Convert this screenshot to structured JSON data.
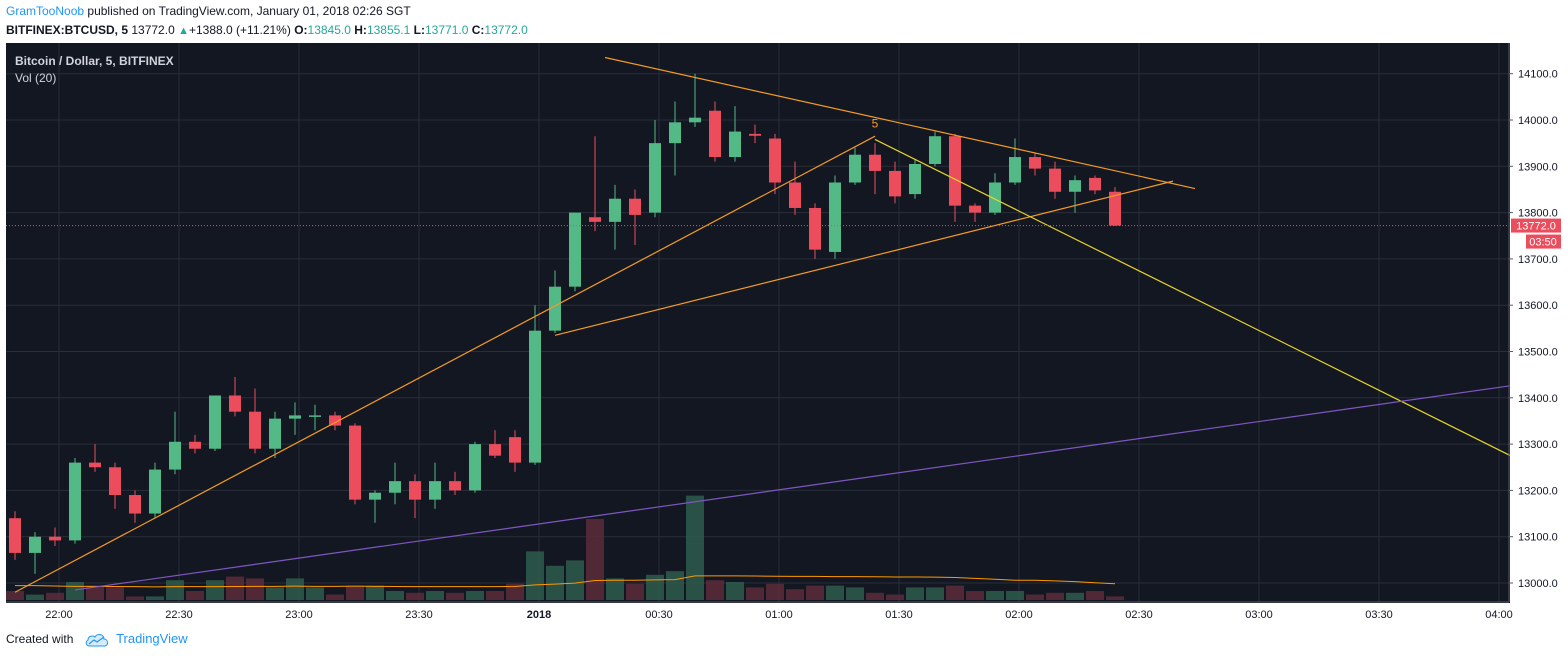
{
  "header": {
    "author": "GramTooNoob",
    "published_text": "published on TradingView.com, January 01, 2018 02:26 SGT",
    "symbol": "BITFINEX:BTCUSD, 5",
    "last_price": "13772.0",
    "change": "+1388.0 (+11.21%)",
    "o_label": "O:",
    "o_value": "13845.0",
    "h_label": "H:",
    "h_value": "13855.1",
    "l_label": "L:",
    "l_value": "13771.0",
    "c_label": "C:",
    "c_value": "13772.0"
  },
  "chart": {
    "title": "Bitcoin / Dollar, 5, BITFINEX",
    "volume_label": "Vol (20)",
    "price_tag": "13772.0",
    "countdown_tag": "03:50",
    "wave_label": "5"
  },
  "footer": {
    "created_with": "Created with",
    "brand": "TradingView"
  },
  "colors": {
    "background": "#131722",
    "grid": "#2a2e39",
    "up": "#53b987",
    "down": "#eb4d5c",
    "trendline_orange": "#f59b22",
    "trendline_yellow": "#e6d52a",
    "trendline_purple": "#7e57c2",
    "volume_ma": "#ff9800"
  },
  "chart_data": {
    "type": "candlestick",
    "interval_minutes": 5,
    "first_candle_time": "21:55",
    "y_ticks": [
      13000,
      13100,
      13200,
      13300,
      13400,
      13500,
      13600,
      13700,
      13800,
      13900,
      14000,
      14100
    ],
    "y_tick_labels": [
      "13000.0",
      "13100.0",
      "13200.0",
      "13300.0",
      "13400.0",
      "13500.0",
      "13600.0",
      "13700.0",
      "13800.0",
      "13900.0",
      "14000.0",
      "14100.0"
    ],
    "ylim": [
      12965,
      14142
    ],
    "x_ticks": [
      {
        "label": "22:00",
        "index": 1
      },
      {
        "label": "22:30",
        "index": 7
      },
      {
        "label": "23:00",
        "index": 13
      },
      {
        "label": "23:30",
        "index": 19
      },
      {
        "label": "2018",
        "index": 25
      },
      {
        "label": "00:30",
        "index": 31
      },
      {
        "label": "01:00",
        "index": 37
      },
      {
        "label": "01:30",
        "index": 43
      },
      {
        "label": "02:00",
        "index": 49
      },
      {
        "label": "02:30",
        "index": 55
      },
      {
        "label": "03:00",
        "index": 61
      },
      {
        "label": "03:30",
        "index": 67
      },
      {
        "label": "04:00",
        "index": 73
      }
    ],
    "current_price": 13772.0,
    "candles": [
      {
        "o": 13140,
        "h": 13155,
        "l": 13050,
        "c": 13065,
        "v": 0.5
      },
      {
        "o": 13065,
        "h": 13110,
        "l": 13020,
        "c": 13100,
        "v": 0.3
      },
      {
        "o": 13100,
        "h": 13120,
        "l": 13080,
        "c": 13092,
        "v": 0.4
      },
      {
        "o": 13092,
        "h": 13270,
        "l": 13085,
        "c": 13260,
        "v": 1.0
      },
      {
        "o": 13260,
        "h": 13300,
        "l": 13240,
        "c": 13250,
        "v": 0.8
      },
      {
        "o": 13250,
        "h": 13260,
        "l": 13160,
        "c": 13190,
        "v": 0.7
      },
      {
        "o": 13190,
        "h": 13200,
        "l": 13130,
        "c": 13150,
        "v": 0.2
      },
      {
        "o": 13150,
        "h": 13260,
        "l": 13140,
        "c": 13245,
        "v": 0.2
      },
      {
        "o": 13245,
        "h": 13370,
        "l": 13235,
        "c": 13305,
        "v": 1.1
      },
      {
        "o": 13305,
        "h": 13320,
        "l": 13280,
        "c": 13290,
        "v": 0.5
      },
      {
        "o": 13290,
        "h": 13405,
        "l": 13285,
        "c": 13405,
        "v": 1.1
      },
      {
        "o": 13405,
        "h": 13445,
        "l": 13360,
        "c": 13370,
        "v": 1.3
      },
      {
        "o": 13370,
        "h": 13420,
        "l": 13280,
        "c": 13290,
        "v": 1.2
      },
      {
        "o": 13290,
        "h": 13370,
        "l": 13270,
        "c": 13355,
        "v": 0.7
      },
      {
        "o": 13355,
        "h": 13390,
        "l": 13320,
        "c": 13362,
        "v": 1.2
      },
      {
        "o": 13362,
        "h": 13385,
        "l": 13330,
        "c": 13362,
        "v": 0.7
      },
      {
        "o": 13362,
        "h": 13370,
        "l": 13330,
        "c": 13340,
        "v": 0.3
      },
      {
        "o": 13340,
        "h": 13345,
        "l": 13170,
        "c": 13180,
        "v": 0.8
      },
      {
        "o": 13180,
        "h": 13200,
        "l": 13130,
        "c": 13195,
        "v": 0.8
      },
      {
        "o": 13195,
        "h": 13260,
        "l": 13170,
        "c": 13220,
        "v": 0.5
      },
      {
        "o": 13220,
        "h": 13235,
        "l": 13140,
        "c": 13180,
        "v": 0.4
      },
      {
        "o": 13180,
        "h": 13260,
        "l": 13160,
        "c": 13220,
        "v": 0.5
      },
      {
        "o": 13220,
        "h": 13240,
        "l": 13190,
        "c": 13200,
        "v": 0.4
      },
      {
        "o": 13200,
        "h": 13305,
        "l": 13195,
        "c": 13300,
        "v": 0.5
      },
      {
        "o": 13300,
        "h": 13330,
        "l": 13270,
        "c": 13275,
        "v": 0.5
      },
      {
        "o": 13315,
        "h": 13330,
        "l": 13240,
        "c": 13260,
        "v": 0.9
      },
      {
        "o": 13260,
        "h": 13600,
        "l": 13255,
        "c": 13545,
        "v": 2.7
      },
      {
        "o": 13545,
        "h": 13675,
        "l": 13540,
        "c": 13640,
        "v": 1.9
      },
      {
        "o": 13640,
        "h": 13800,
        "l": 13630,
        "c": 13800,
        "v": 2.2
      },
      {
        "o": 13790,
        "h": 13965,
        "l": 13760,
        "c": 13780,
        "v": 4.5
      },
      {
        "o": 13780,
        "h": 13860,
        "l": 13720,
        "c": 13830,
        "v": 1.2
      },
      {
        "o": 13830,
        "h": 13850,
        "l": 13730,
        "c": 13795,
        "v": 0.9
      },
      {
        "o": 13800,
        "h": 14000,
        "l": 13790,
        "c": 13950,
        "v": 1.4
      },
      {
        "o": 13950,
        "h": 14040,
        "l": 13880,
        "c": 13995,
        "v": 1.6
      },
      {
        "o": 13995,
        "h": 14100,
        "l": 13985,
        "c": 14005,
        "v": 5.8
      },
      {
        "o": 14020,
        "h": 14040,
        "l": 13910,
        "c": 13920,
        "v": 1.1
      },
      {
        "o": 13920,
        "h": 14030,
        "l": 13910,
        "c": 13975,
        "v": 1.0
      },
      {
        "o": 13970,
        "h": 13990,
        "l": 13950,
        "c": 13966,
        "v": 0.7
      },
      {
        "o": 13960,
        "h": 13970,
        "l": 13840,
        "c": 13865,
        "v": 0.9
      },
      {
        "o": 13865,
        "h": 13910,
        "l": 13795,
        "c": 13810,
        "v": 0.6
      },
      {
        "o": 13810,
        "h": 13820,
        "l": 13700,
        "c": 13720,
        "v": 0.8
      },
      {
        "o": 13715,
        "h": 13880,
        "l": 13700,
        "c": 13865,
        "v": 0.8
      },
      {
        "o": 13865,
        "h": 13940,
        "l": 13860,
        "c": 13925,
        "v": 0.7
      },
      {
        "o": 13925,
        "h": 13950,
        "l": 13840,
        "c": 13890,
        "v": 0.4
      },
      {
        "o": 13890,
        "h": 13910,
        "l": 13820,
        "c": 13835,
        "v": 0.3
      },
      {
        "o": 13840,
        "h": 13915,
        "l": 13830,
        "c": 13905,
        "v": 0.7
      },
      {
        "o": 13905,
        "h": 13975,
        "l": 13900,
        "c": 13965,
        "v": 0.7
      },
      {
        "o": 13965,
        "h": 13970,
        "l": 13780,
        "c": 13815,
        "v": 0.8
      },
      {
        "o": 13815,
        "h": 13820,
        "l": 13780,
        "c": 13800,
        "v": 0.5
      },
      {
        "o": 13800,
        "h": 13885,
        "l": 13795,
        "c": 13865,
        "v": 0.5
      },
      {
        "o": 13865,
        "h": 13960,
        "l": 13860,
        "c": 13920,
        "v": 0.5
      },
      {
        "o": 13920,
        "h": 13930,
        "l": 13880,
        "c": 13895,
        "v": 0.3
      },
      {
        "o": 13895,
        "h": 13910,
        "l": 13830,
        "c": 13845,
        "v": 0.4
      },
      {
        "o": 13845,
        "h": 13880,
        "l": 13800,
        "c": 13870,
        "v": 0.4
      },
      {
        "o": 13875,
        "h": 13880,
        "l": 13840,
        "c": 13848,
        "v": 0.5
      },
      {
        "o": 13845,
        "h": 13855,
        "l": 13771,
        "c": 13772,
        "v": 0.2
      }
    ],
    "volume_ma": [
      0.8,
      0.8,
      0.78,
      0.76,
      0.76,
      0.75,
      0.74,
      0.73,
      0.74,
      0.74,
      0.74,
      0.75,
      0.76,
      0.76,
      0.77,
      0.76,
      0.76,
      0.77,
      0.76,
      0.75,
      0.74,
      0.74,
      0.74,
      0.74,
      0.74,
      0.75,
      0.84,
      0.88,
      0.94,
      1.08,
      1.1,
      1.1,
      1.12,
      1.13,
      1.34,
      1.34,
      1.34,
      1.33,
      1.32,
      1.31,
      1.31,
      1.3,
      1.3,
      1.29,
      1.28,
      1.28,
      1.27,
      1.25,
      1.2,
      1.15,
      1.1,
      1.1,
      1.06,
      1.02,
      0.96,
      0.9
    ],
    "volume_max": 6.8,
    "trendlines": [
      {
        "name": "orange-upper",
        "color": "orange",
        "from": {
          "i": 29.5,
          "p": 14135
        },
        "to": {
          "i": 59,
          "p": 13852
        }
      },
      {
        "name": "orange-rising",
        "color": "orange",
        "from": {
          "i": 0,
          "p": 12980
        },
        "to": {
          "i": 43,
          "p": 13965
        }
      },
      {
        "name": "orange-lower",
        "color": "orange",
        "from": {
          "i": 27,
          "p": 13535
        },
        "to": {
          "i": 57.9,
          "p": 13868
        }
      },
      {
        "name": "yellow-wave",
        "color": "yellow",
        "from": {
          "i": 43,
          "p": 13958
        },
        "to": {
          "i": 75.1,
          "p": 13268
        }
      },
      {
        "name": "purple-long",
        "color": "purple",
        "from": {
          "i": 3,
          "p": 12985
        },
        "to": {
          "i": 75.1,
          "p": 13428
        }
      }
    ],
    "wave_point": {
      "i": 43,
      "p": 13962
    }
  }
}
